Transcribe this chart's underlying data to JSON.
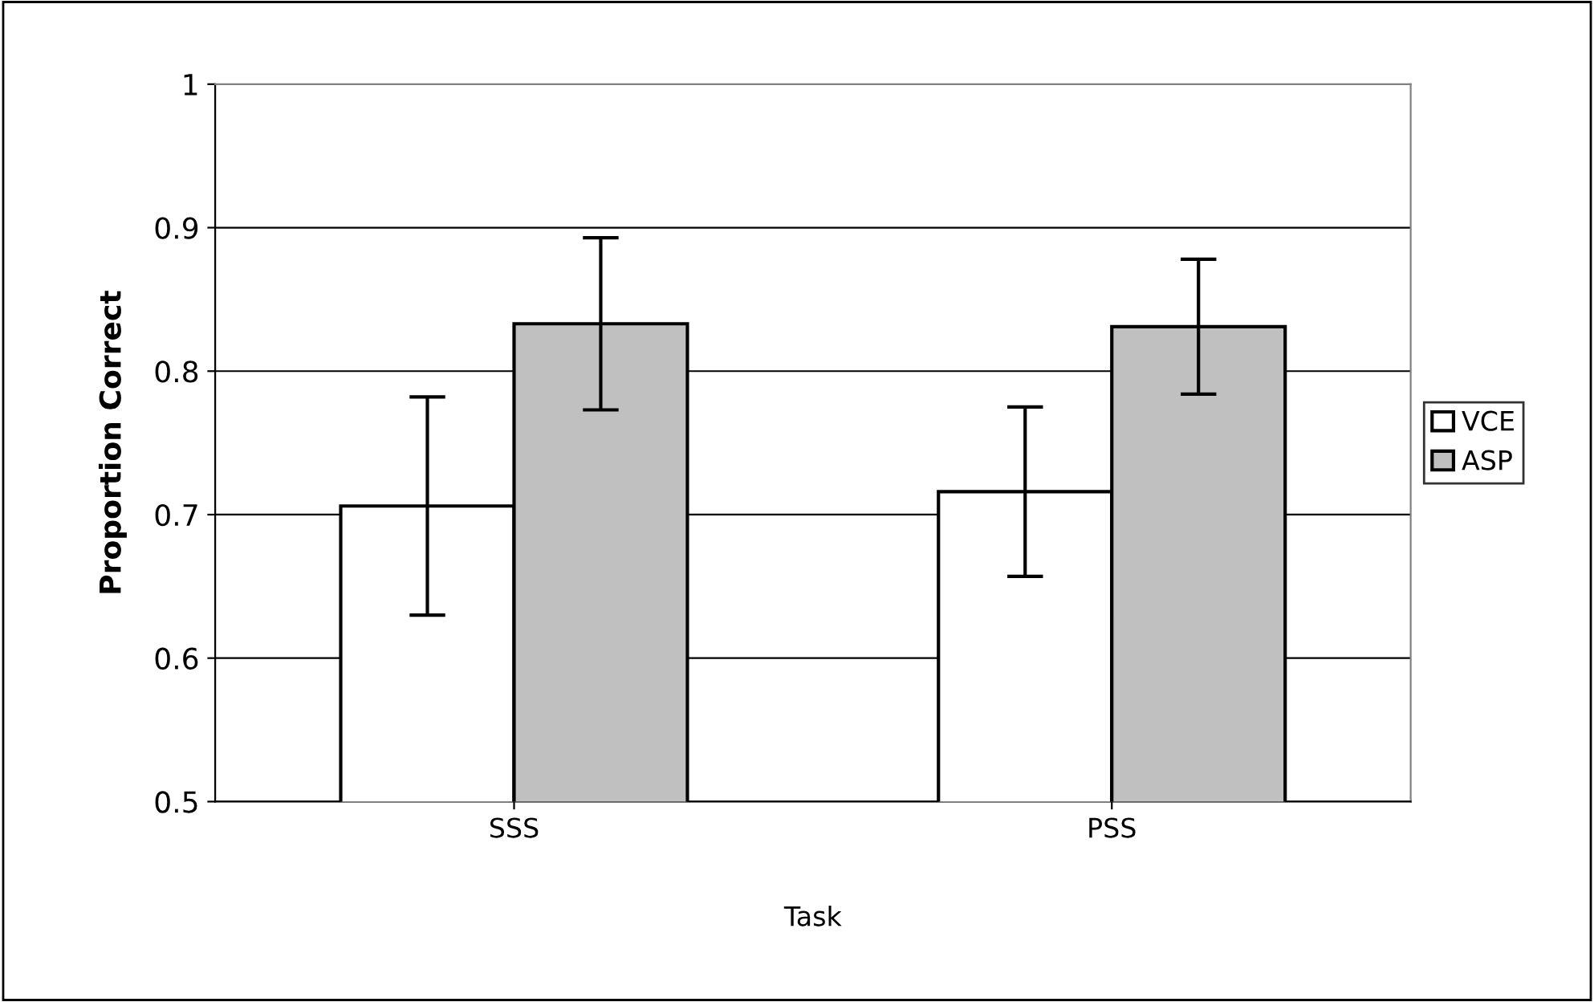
{
  "chart_data": {
    "type": "bar",
    "xlabel": "Task",
    "ylabel": "Proportion Correct",
    "categories": [
      "SSS",
      "PSS"
    ],
    "series": [
      {
        "name": "VCE",
        "color": "#ffffff",
        "values": [
          0.706,
          0.716
        ],
        "errors": [
          0.076,
          0.059
        ]
      },
      {
        "name": "ASP",
        "color": "#c0c0c0",
        "values": [
          0.833,
          0.831
        ],
        "errors": [
          0.06,
          0.047
        ]
      }
    ],
    "ylim": [
      0.5,
      1
    ],
    "yticks": [
      0.5,
      0.6,
      0.7,
      0.8,
      0.9,
      1
    ],
    "grid": "y",
    "legend": "right"
  }
}
